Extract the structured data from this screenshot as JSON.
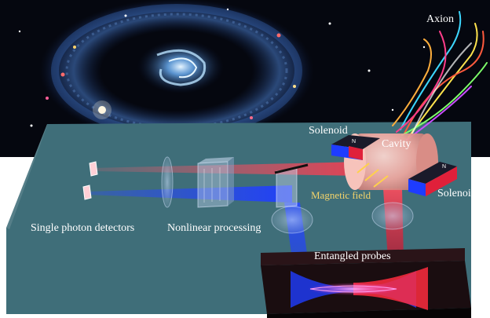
{
  "labels": {
    "axion": "Axion",
    "solenoid_left": "Solenoid",
    "solenoid_right": "Solenoid",
    "cavity": "Cavity",
    "magnetic_field": "Magnetic field",
    "single_photon_detectors": "Single photon detectors",
    "nonlinear_processing": "Nonlinear processing",
    "entangled_probes": "Entangled probes"
  },
  "colors": {
    "space_background": "#05070f",
    "table_surface": "#3f6e79",
    "red_beam": "#ff4d5e",
    "blue_beam": "#1f3dff",
    "solenoid_blue": "#1e3cff",
    "solenoid_red": "#e0203a",
    "cavity": "#f2a8a0",
    "magnetic_field_text": "#f3d36a",
    "probe_box": "#2a1418"
  },
  "icons": [
    "galaxy-image",
    "axion-streaks",
    "solenoid-magnet",
    "cavity-cylinder",
    "beam-splitter",
    "lens",
    "crystal-block",
    "photon-detector",
    "entangled-probe-box"
  ]
}
